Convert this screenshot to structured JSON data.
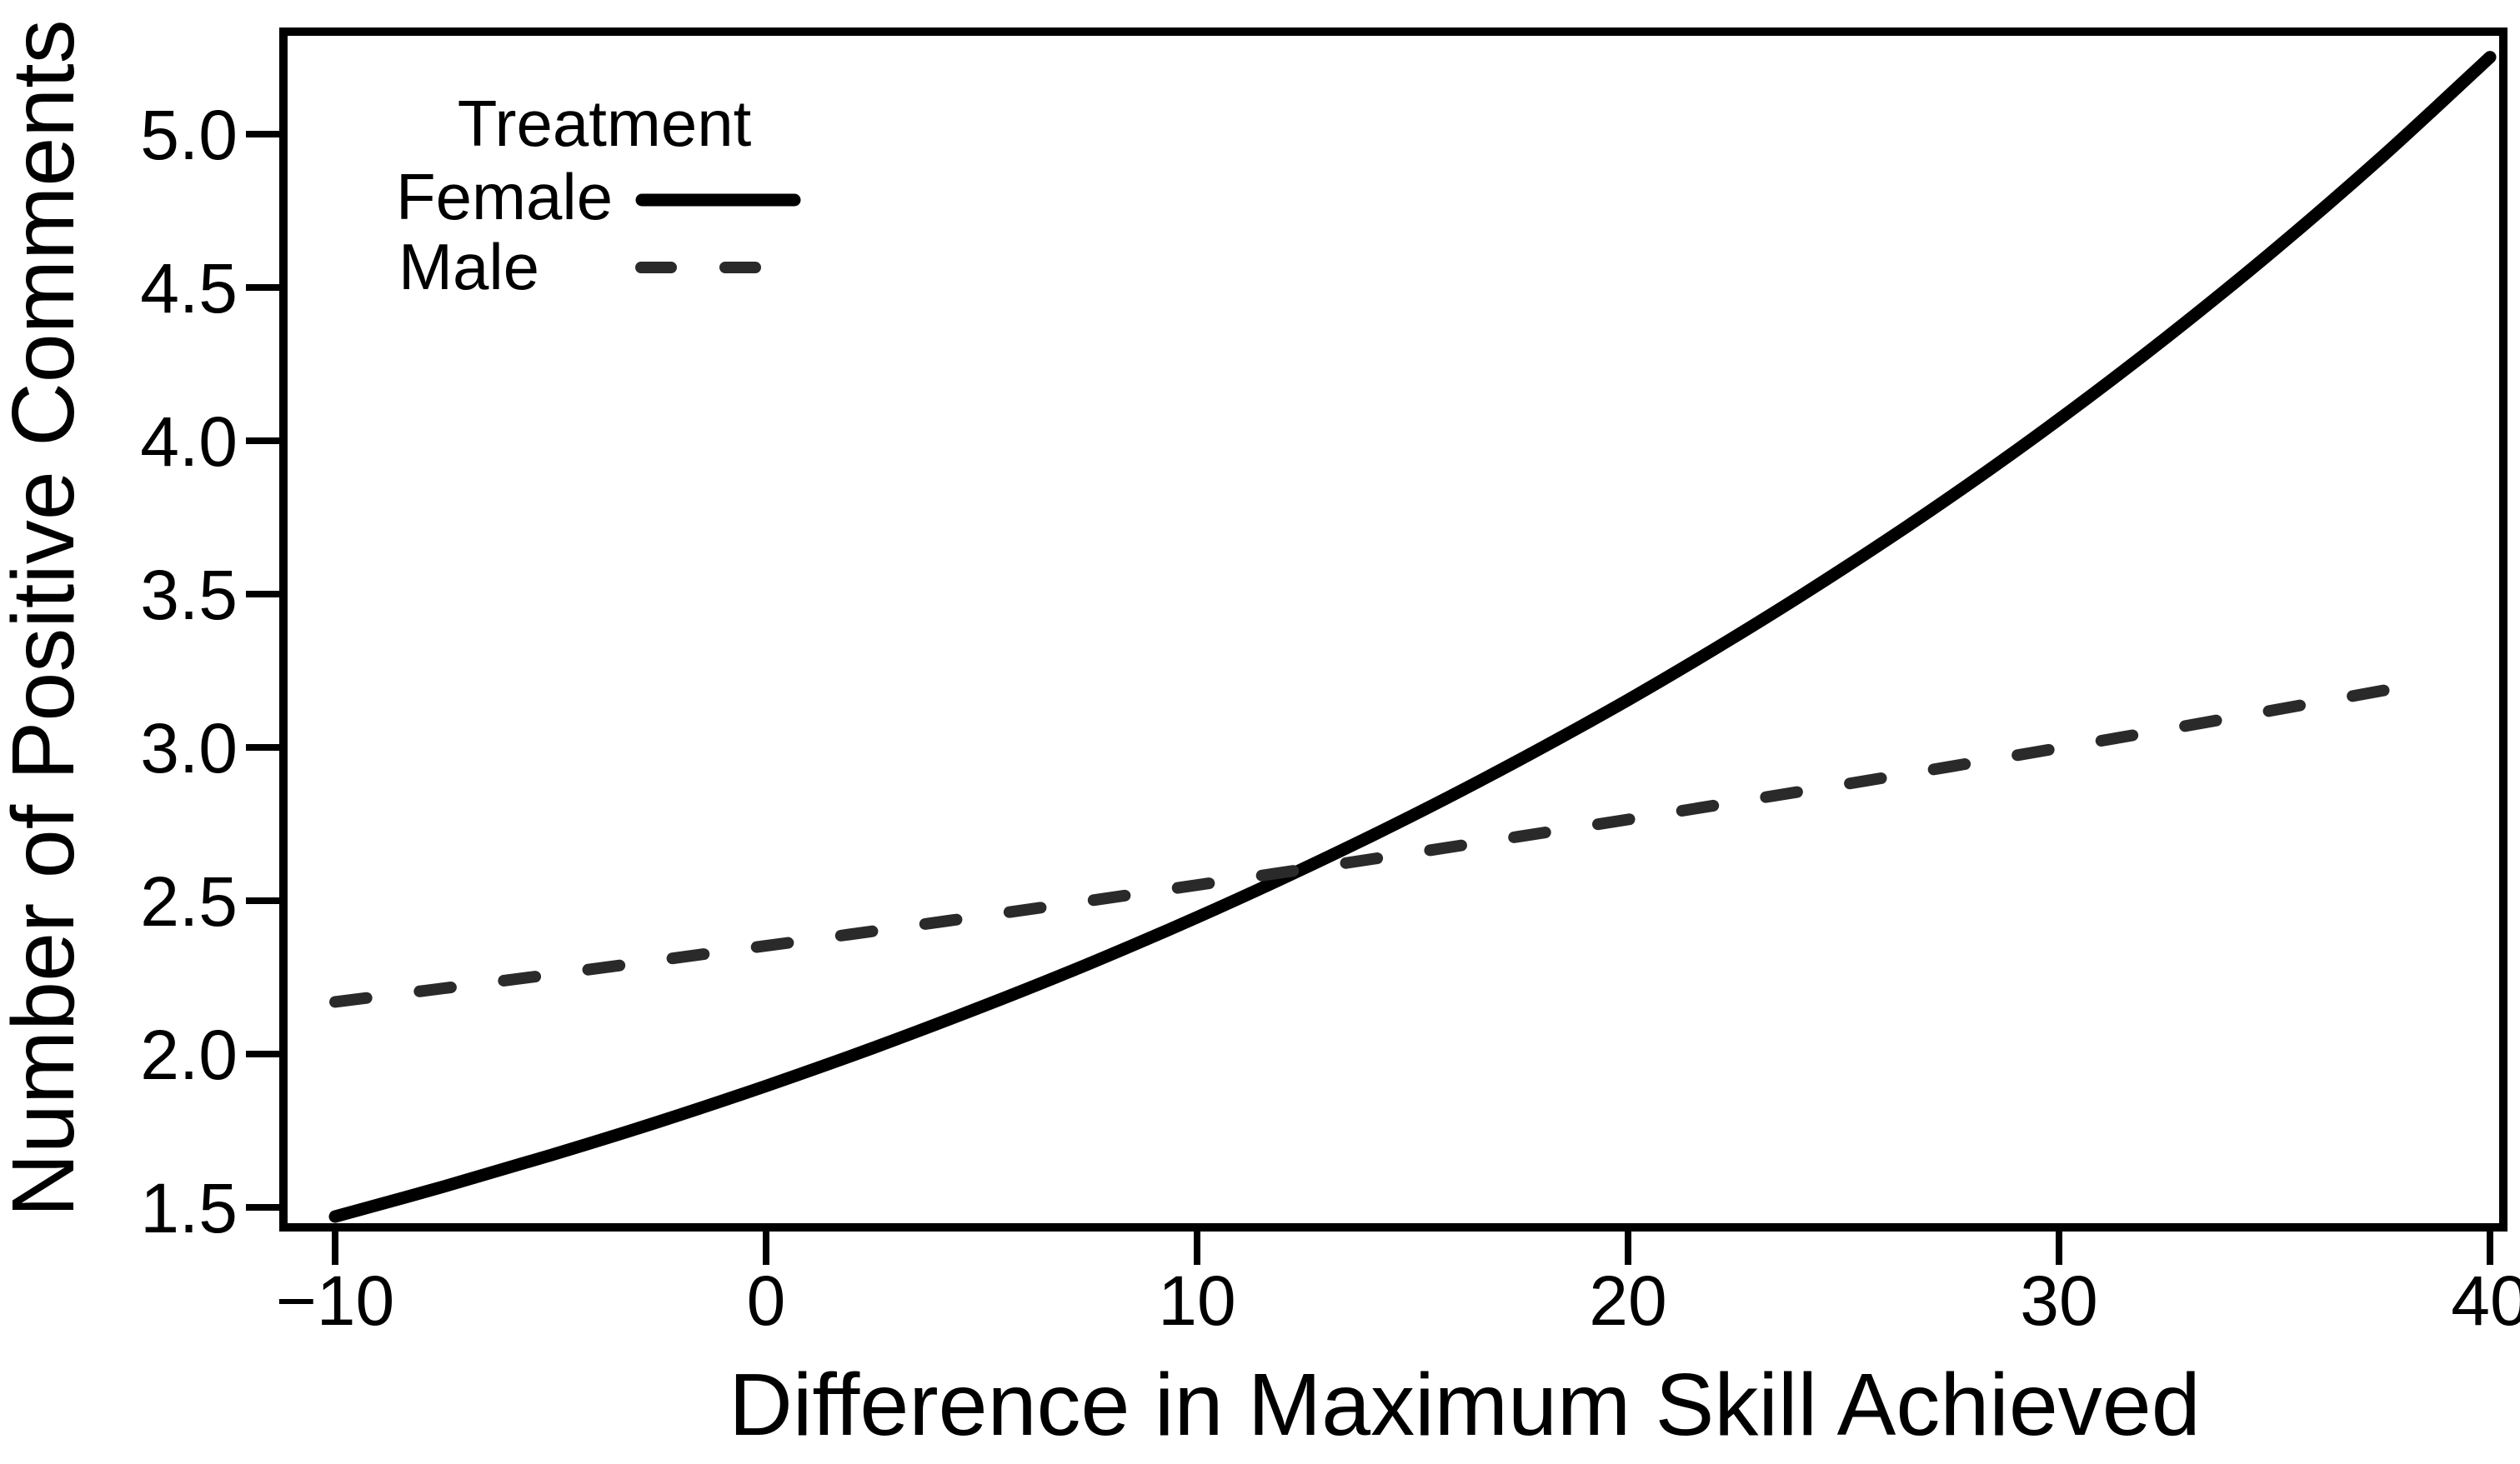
{
  "figure": {
    "background": "#ffffff",
    "axis_color": "#000000"
  },
  "chart_data": {
    "type": "line",
    "title": "",
    "xlabel": "Difference in Maximum Skill Achieved",
    "ylabel": "Number of Positive Comments",
    "xlim": [
      -11.3,
      40.4
    ],
    "ylim": [
      1.44,
      5.35
    ],
    "x_ticks": [
      -10,
      0,
      10,
      20,
      30,
      40
    ],
    "x_tick_labels": [
      "−10",
      "0",
      "10",
      "20",
      "30",
      "40"
    ],
    "y_ticks": [
      5.0,
      4.5,
      4.0,
      3.5,
      3.0,
      2.5,
      2.0,
      1.5
    ],
    "y_tick_labels": [
      "5.0",
      "4.5",
      "4.0",
      "3.5",
      "3.0",
      "2.5",
      "2.0",
      "1.5"
    ],
    "grid": false,
    "legend_title": "Treatment",
    "legend_position": "inside-top-left",
    "series": [
      {
        "name": "Female",
        "style": "solid",
        "color": "#000000",
        "line_width": 15,
        "x": [
          -10,
          -7.5,
          -5,
          -2.5,
          0,
          2.5,
          5,
          7.5,
          10,
          12.5,
          15,
          17.5,
          20,
          22.5,
          25,
          27.5,
          30,
          32.5,
          35,
          37.5,
          40
        ],
        "y": [
          1.47,
          1.567,
          1.67,
          1.779,
          1.896,
          2.021,
          2.154,
          2.295,
          2.446,
          2.607,
          2.778,
          2.961,
          3.155,
          3.363,
          3.584,
          3.819,
          4.07,
          4.338,
          4.623,
          4.927,
          5.251
        ]
      },
      {
        "name": "Male",
        "style": "dashed",
        "color": "#2a2a2a",
        "line_width": 14,
        "x": [
          -10,
          -7.5,
          -5,
          -2.5,
          0,
          2.5,
          5,
          7.5,
          10,
          12.5,
          15,
          17.5,
          20,
          22.5,
          25,
          27.5,
          30,
          32.5,
          35,
          37.5,
          38.6
        ],
        "y": [
          2.17,
          2.214,
          2.259,
          2.306,
          2.353,
          2.401,
          2.45,
          2.5,
          2.551,
          2.603,
          2.656,
          2.71,
          2.765,
          2.822,
          2.879,
          2.938,
          2.998,
          3.059,
          3.122,
          3.185,
          3.214
        ]
      }
    ]
  }
}
